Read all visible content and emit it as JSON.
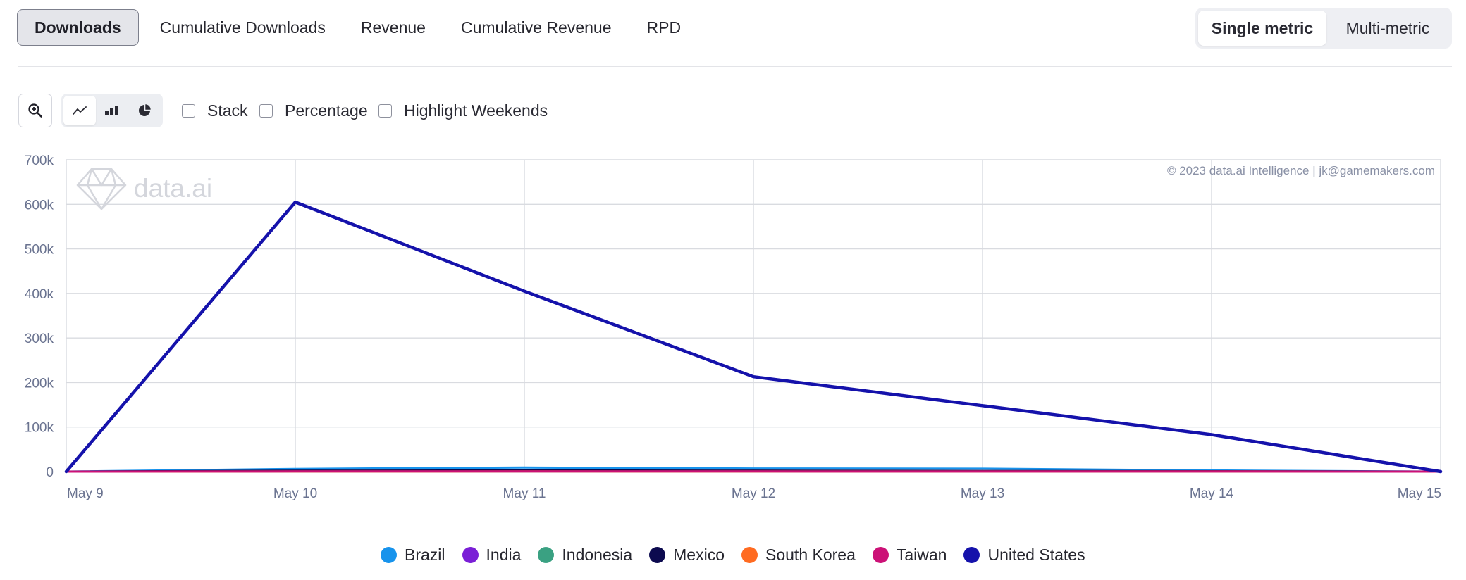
{
  "metric_tabs": [
    {
      "label": "Downloads",
      "active": true
    },
    {
      "label": "Cumulative Downloads",
      "active": false
    },
    {
      "label": "Revenue",
      "active": false
    },
    {
      "label": "Cumulative Revenue",
      "active": false
    },
    {
      "label": "RPD",
      "active": false
    }
  ],
  "mode_toggle": {
    "single_label": "Single metric",
    "multi_label": "Multi-metric",
    "selected": "single"
  },
  "toolbar": {
    "zoom_icon": "zoom-in-icon",
    "chart_types": [
      {
        "icon": "line-chart-icon",
        "active": true
      },
      {
        "icon": "bar-chart-icon",
        "active": false
      },
      {
        "icon": "pie-chart-icon",
        "active": false
      }
    ],
    "stack_label": "Stack",
    "percentage_label": "Percentage",
    "highlight_weekends_label": "Highlight Weekends"
  },
  "watermark": {
    "text": "data.ai",
    "icon": "diamond-logo-icon"
  },
  "copyright": "© 2023 data.ai Intelligence | jk@gamemakers.com",
  "colors": {
    "Brazil": "#1793ec",
    "India": "#7a1fd6",
    "Indonesia": "#3aa182",
    "Mexico": "#0c0a4f",
    "South Korea": "#ff6b21",
    "Taiwan": "#cc1177",
    "United States": "#1512ab"
  },
  "chart_data": {
    "type": "line",
    "title": "",
    "xlabel": "",
    "ylabel": "",
    "x": [
      "May 9",
      "May 10",
      "May 11",
      "May 12",
      "May 13",
      "May 14",
      "May 15"
    ],
    "ylim": [
      0,
      700000
    ],
    "y_ticks": [
      0,
      100000,
      200000,
      300000,
      400000,
      500000,
      600000,
      700000
    ],
    "y_tick_labels": [
      "0",
      "100k",
      "200k",
      "300k",
      "400k",
      "500k",
      "600k",
      "700k"
    ],
    "grid": true,
    "legend_position": "bottom",
    "series": [
      {
        "name": "Brazil",
        "values": [
          0,
          6000,
          9000,
          7000,
          6500,
          2500,
          0
        ]
      },
      {
        "name": "India",
        "values": [
          0,
          300,
          400,
          300,
          300,
          100,
          0
        ]
      },
      {
        "name": "Indonesia",
        "values": [
          0,
          500,
          600,
          500,
          400,
          200,
          0
        ]
      },
      {
        "name": "Mexico",
        "values": [
          0,
          2000,
          2500,
          2200,
          1500,
          800,
          0
        ]
      },
      {
        "name": "South Korea",
        "values": [
          0,
          200,
          300,
          200,
          200,
          100,
          0
        ]
      },
      {
        "name": "Taiwan",
        "values": [
          0,
          300,
          300,
          300,
          200,
          100,
          0
        ]
      },
      {
        "name": "United States",
        "values": [
          0,
          605000,
          405000,
          213000,
          148000,
          83000,
          0
        ]
      }
    ]
  }
}
